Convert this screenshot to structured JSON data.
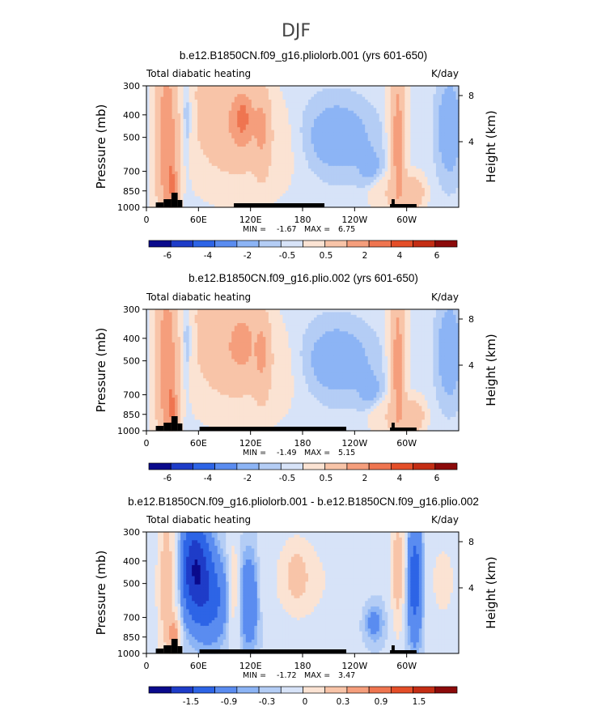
{
  "figure_title": "DJF",
  "chart_data": [
    {
      "type": "heatmap",
      "title": "b.e12.B1850CN.f09_g16.pliolorb.001 (yrs 601-650)",
      "left_string": "Total diabatic heating",
      "right_string": "K/day",
      "ylabel": "Pressure (mb)",
      "ylabel_right": "Height (km)",
      "y_ticks": [
        "300",
        "400",
        "500",
        "700",
        "850",
        "1000"
      ],
      "y_ticks_right": [
        "8",
        "4"
      ],
      "x_ticks": [
        "0",
        "60E",
        "120E",
        "180",
        "120W",
        "60W"
      ],
      "stats": {
        "min_label": "MIN =",
        "min": "-1.67",
        "max_label": "MAX =",
        "max": "6.75"
      },
      "colorbar_labels": [
        "-6",
        "-4",
        "-2",
        "-0.5",
        "0.5",
        "2",
        "4",
        "6"
      ]
    },
    {
      "type": "heatmap",
      "title": "b.e12.B1850CN.f09_g16.plio.002 (yrs 601-650)",
      "left_string": "Total diabatic heating",
      "right_string": "K/day",
      "ylabel": "Pressure (mb)",
      "ylabel_right": "Height (km)",
      "y_ticks": [
        "300",
        "400",
        "500",
        "700",
        "850",
        "1000"
      ],
      "y_ticks_right": [
        "8",
        "4"
      ],
      "x_ticks": [
        "0",
        "60E",
        "120E",
        "180",
        "120W",
        "60W"
      ],
      "stats": {
        "min_label": "MIN =",
        "min": "-1.49",
        "max_label": "MAX =",
        "max": "5.15"
      },
      "colorbar_labels": [
        "-6",
        "-4",
        "-2",
        "-0.5",
        "0.5",
        "2",
        "4",
        "6"
      ]
    },
    {
      "type": "heatmap",
      "title": "b.e12.B1850CN.f09_g16.pliolorb.001 - b.e12.B1850CN.f09_g16.plio.002",
      "left_string": "Total diabatic heating",
      "right_string": "K/day",
      "ylabel": "Pressure (mb)",
      "ylabel_right": "Height (km)",
      "y_ticks": [
        "300",
        "400",
        "500",
        "700",
        "850",
        "1000"
      ],
      "y_ticks_right": [
        "8",
        "4"
      ],
      "x_ticks": [
        "0",
        "60E",
        "120E",
        "180",
        "120W",
        "60W"
      ],
      "stats": {
        "min_label": "MIN =",
        "min": "-1.72",
        "max_label": "MAX =",
        "max": "3.47"
      },
      "colorbar_labels": [
        "-1.5",
        "-0.9",
        "-0.3",
        "0",
        "0.3",
        "0.9",
        "1.5"
      ]
    }
  ],
  "colors": {
    "palette": [
      "#0a0a8c",
      "#1e3cc8",
      "#2d64e6",
      "#5a8cf0",
      "#8cb4f5",
      "#b4cdf5",
      "#d7e3f8",
      "#fbe3d3",
      "#f8c4a8",
      "#f59e7c",
      "#ef7550",
      "#e44e28",
      "#c42d14",
      "#8c0a0a"
    ],
    "topography": "#000000"
  }
}
